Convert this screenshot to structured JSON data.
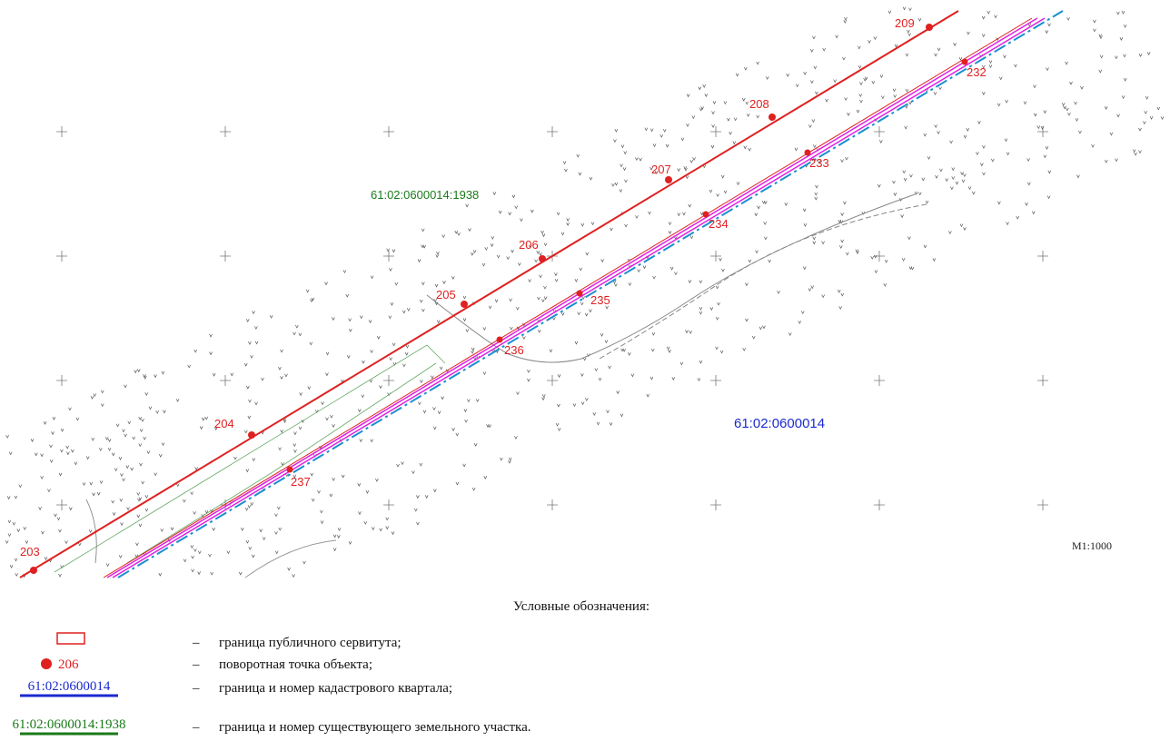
{
  "map": {
    "points_object": [
      "203",
      "204",
      "205",
      "206",
      "207",
      "208",
      "209"
    ],
    "points_servitude": [
      "232",
      "233",
      "234",
      "235",
      "236",
      "237"
    ],
    "parcel_label": "61:02:0600014:1938",
    "quarter_label": "61:02:0600014",
    "scale": "М1:1000"
  },
  "legend": {
    "title": "Условные обозначения:",
    "separator": "–",
    "items": [
      {
        "text": "граница публичного сервитута;"
      },
      {
        "symbol_label": "206",
        "text": "поворотная точка объекта;"
      },
      {
        "symbol_label": "61:02:0600014",
        "text": "граница и номер кадастрового квартала;"
      },
      {
        "symbol_label": "61:02:0600014:1938",
        "text": "граница и номер существующего земельного участка."
      }
    ]
  }
}
